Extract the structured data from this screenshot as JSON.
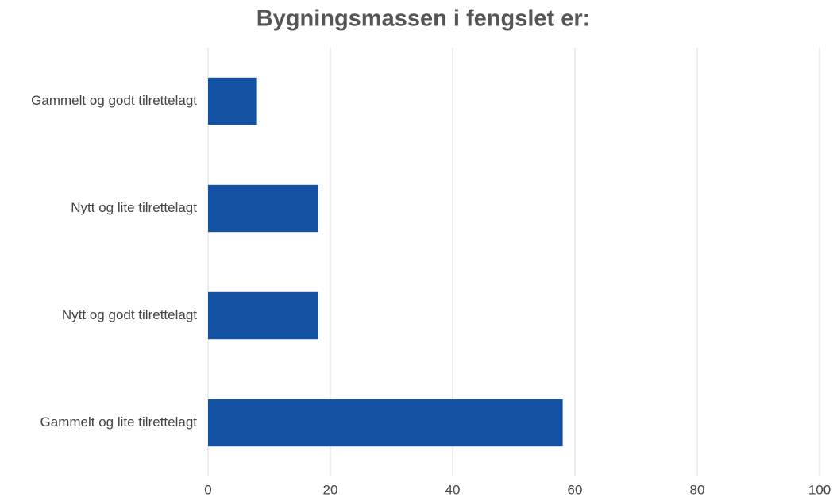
{
  "chart_data": {
    "type": "bar",
    "orientation": "horizontal",
    "title": "Bygningsmassen i fengslet er:",
    "categories": [
      "Gammelt og godt tilrettelagt",
      "Nytt og lite tilrettelagt",
      "Nytt og godt tilrettelagt",
      "Gammelt og lite tilrettelagt"
    ],
    "values": [
      8,
      18,
      18,
      58
    ],
    "color": "#1351a3",
    "xlim": [
      0,
      100
    ],
    "xticks": [
      0,
      20,
      40,
      60,
      80,
      100
    ],
    "grid": true
  }
}
